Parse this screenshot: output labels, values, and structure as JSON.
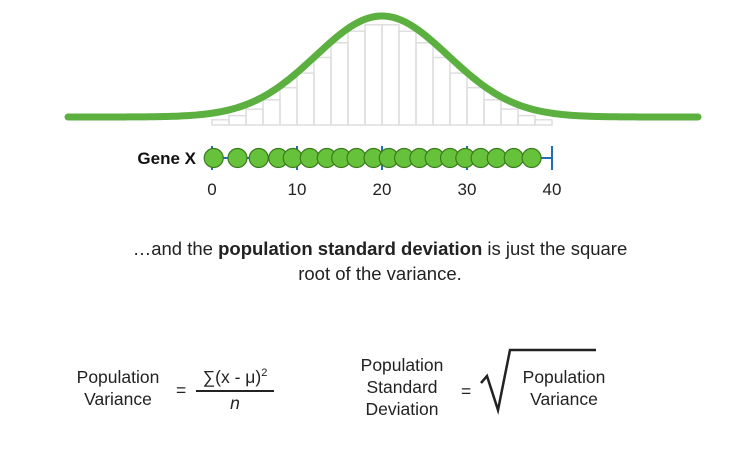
{
  "gene_label": "Gene X",
  "axis": {
    "ticks": [
      "0",
      "10",
      "20",
      "30",
      "40"
    ],
    "min": 0,
    "max": 40
  },
  "points": [
    0.2,
    3,
    5.5,
    7.8,
    9.5,
    11.5,
    13.5,
    15.2,
    17,
    19,
    20.8,
    22.6,
    24.4,
    26.2,
    28,
    29.8,
    31.6,
    33.5,
    35.5,
    37.6
  ],
  "distribution": {
    "mean": 20,
    "sd": 7.8
  },
  "caption": {
    "p1": "…and the ",
    "p2": "population standard deviation",
    "p3": " is just the square root of the variance."
  },
  "formula_variance": {
    "label_line1": "Population",
    "label_line2": "Variance",
    "equals": "=",
    "numerator": "∑(x - μ)",
    "exponent": "2",
    "denominator": "n"
  },
  "formula_sd": {
    "label_line1": "Population",
    "label_line2": "Standard",
    "label_line3": "Deviation",
    "equals": "=",
    "radicand_line1": "Population",
    "radicand_line2": "Variance"
  },
  "colors": {
    "curve": "#5bb040",
    "points": "#66c23a",
    "axis": "#1f6fb5",
    "bars": "#dedede"
  }
}
